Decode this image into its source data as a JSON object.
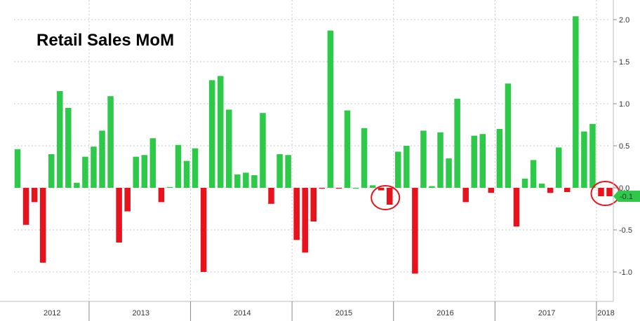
{
  "chart_data": {
    "type": "bar",
    "title": "Retail Sales MoM",
    "xlabel": "",
    "ylabel": "",
    "ylim": [
      -1.35,
      2.25
    ],
    "yticks": [
      2.0,
      1.5,
      1.0,
      0.5,
      0.0,
      -0.5,
      -1.0
    ],
    "ytick_labels": [
      "2.0",
      "1.5",
      "1.0",
      "0.5",
      "0.0",
      "-0.5",
      "-1.0"
    ],
    "grid": true,
    "last_value_label": "-0.1",
    "year_labels": [
      "2012",
      "2013",
      "2014",
      "2015",
      "2016",
      "2017",
      "2018"
    ],
    "year_bar_counts": [
      9,
      12,
      12,
      12,
      12,
      12,
      2
    ],
    "values": [
      0.46,
      -0.44,
      -0.17,
      -0.89,
      0.4,
      1.15,
      0.95,
      0.06,
      0.37,
      0.49,
      0.68,
      1.09,
      -0.65,
      -0.28,
      0.37,
      0.39,
      0.59,
      -0.17,
      0.01,
      0.51,
      0.32,
      0.47,
      -1.0,
      1.28,
      1.33,
      0.93,
      0.16,
      0.18,
      0.15,
      0.89,
      -0.19,
      0.4,
      0.39,
      -0.62,
      -0.77,
      -0.4,
      -0.01,
      1.87,
      -0.01,
      0.92,
      0.0,
      0.71,
      0.03,
      -0.03,
      -0.2,
      0.43,
      0.5,
      -1.02,
      0.68,
      0.02,
      0.66,
      0.35,
      1.06,
      -0.17,
      0.62,
      0.64,
      -0.06,
      0.7,
      1.24,
      -0.46,
      0.11,
      0.33,
      0.05,
      -0.06,
      0.48,
      -0.05,
      2.04,
      0.67,
      0.76,
      -0.1,
      -0.1
    ],
    "positive_color": "#2ec948",
    "negative_color": "#e8121c",
    "highlight_circles": [
      {
        "from_index": 43,
        "to_index": 44
      },
      {
        "from_index": 69,
        "to_index": 70
      }
    ],
    "label_color": "#2ec948"
  }
}
